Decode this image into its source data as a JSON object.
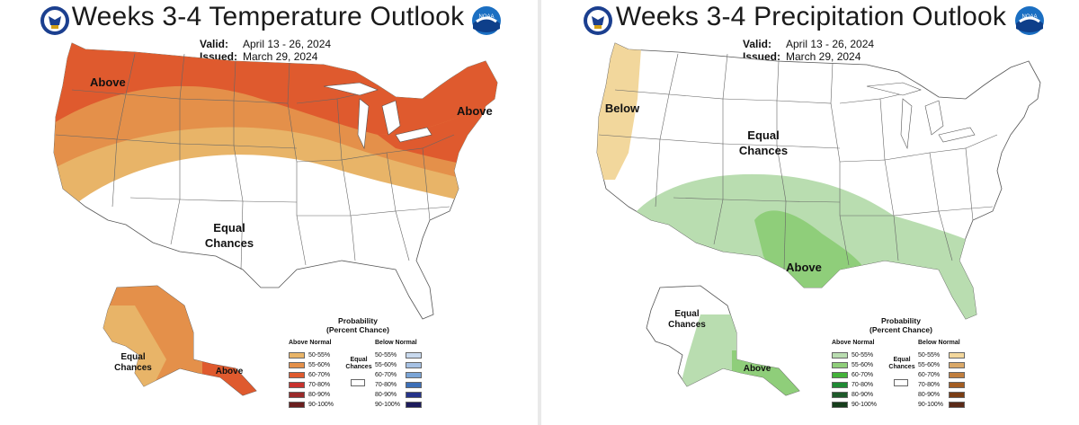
{
  "temperature": {
    "title": "Weeks 3-4 Temperature Outlook",
    "valid_label": "Valid:",
    "valid_value": "April 13 - 26, 2024",
    "issued_label": "Issued:",
    "issued_value": "March 29, 2024",
    "labels": {
      "above_north": "Above",
      "above_northeast": "Above",
      "equal_line1": "Equal",
      "equal_line2": "Chances",
      "ak_equal_line1": "Equal",
      "ak_equal_line2": "Chances",
      "ak_above": "Above"
    },
    "colors": {
      "c50": "#e8b468",
      "c55": "#e4904a",
      "c60": "#df5a2e"
    }
  },
  "precipitation": {
    "title": "Weeks 3-4 Precipitation Outlook",
    "valid_label": "Valid:",
    "valid_value": "April 13 - 26, 2024",
    "issued_label": "Issued:",
    "issued_value": "March 29, 2024",
    "labels": {
      "below": "Below",
      "equal_line1": "Equal",
      "equal_line2": "Chances",
      "above": "Above",
      "ak_equal_line1": "Equal",
      "ak_equal_line2": "Chances",
      "ak_above": "Above"
    },
    "colors": {
      "g50": "#b9ddb0",
      "g55": "#8fce7a",
      "dry50": "#f2d79c"
    }
  },
  "legend": {
    "title_line1": "Probability",
    "title_line2": "(Percent Chance)",
    "above_normal": "Above Normal",
    "below_normal": "Below Normal",
    "equal_line1": "Equal",
    "equal_line2": "Chances",
    "ranges": [
      "50-55%",
      "55-60%",
      "60-70%",
      "70-80%",
      "80-90%",
      "90-100%"
    ],
    "temp_above_colors": [
      "#e8b468",
      "#e4904a",
      "#df5a2e",
      "#c8322d",
      "#9a2a2a",
      "#6a1e1e"
    ],
    "temp_below_colors": [
      "#c8d9ee",
      "#a6c1e4",
      "#7aa4d6",
      "#3c6fb8",
      "#25338a",
      "#1c1b5c"
    ],
    "precip_above_colors": [
      "#b9ddb0",
      "#8fce7a",
      "#44b23a",
      "#1f8a33",
      "#1e5a2a",
      "#163e1c"
    ],
    "precip_below_colors": [
      "#f2d79c",
      "#d9a868",
      "#c07e3e",
      "#a35d22",
      "#7a3d14",
      "#5a2a18"
    ]
  },
  "logos": {
    "left_icon": "noaa-commerce-seal-icon",
    "right_icon": "noaa-logo-icon",
    "noaa_text": "NOAA"
  }
}
